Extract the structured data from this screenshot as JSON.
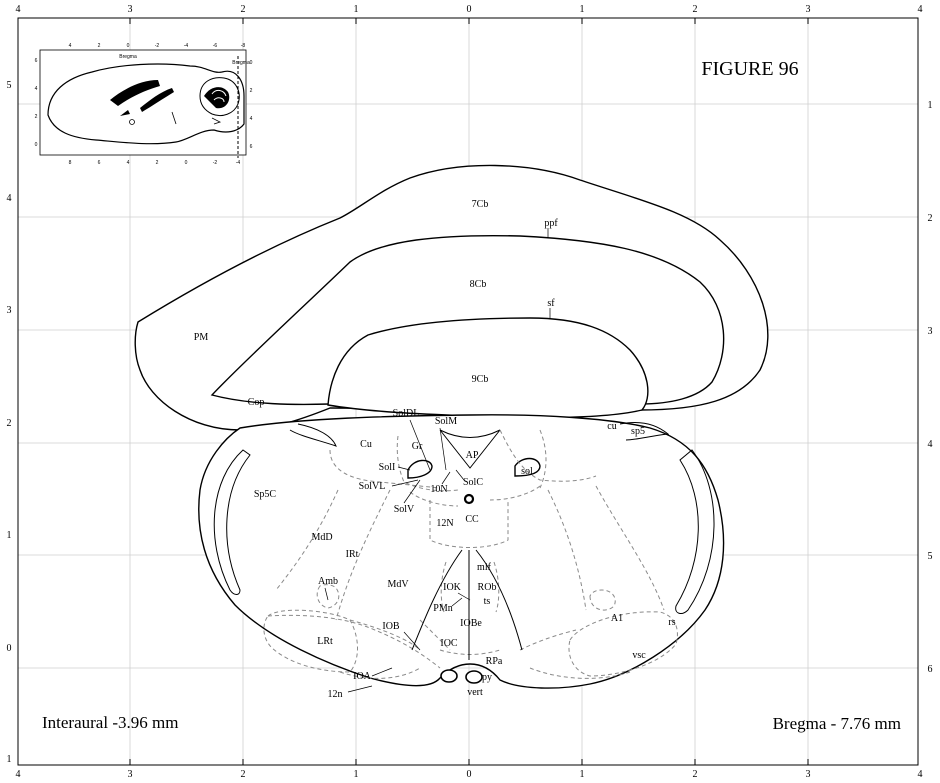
{
  "figure_title": "FIGURE 96",
  "interaural": "Interaural -3.96 mm",
  "bregma": "Bregma - 7.76 mm",
  "axes": {
    "top": [
      "4",
      "3",
      "2",
      "1",
      "0",
      "1",
      "2",
      "3",
      "4"
    ],
    "bottom": [
      "4",
      "3",
      "2",
      "1",
      "0",
      "1",
      "2",
      "3",
      "4"
    ],
    "left": [
      "5",
      "4",
      "3",
      "2",
      "1",
      "0",
      "1"
    ],
    "right": [
      "1",
      "2",
      "3",
      "4",
      "5",
      "6"
    ]
  },
  "inset": {
    "top_ticks": [
      "4",
      "2",
      "0",
      "-2",
      "-4",
      "-6",
      "-8"
    ],
    "bottom_ticks": [
      "8",
      "6",
      "4",
      "2",
      "0",
      "-2",
      "-4"
    ],
    "left_ticks": [
      "6",
      "4",
      "2",
      "0"
    ],
    "right_ticks": [
      "0",
      "2",
      "4",
      "6"
    ],
    "bregma_label": "Bregma",
    "bregma_right_label": "Bregma"
  },
  "structure_labels": {
    "cb7": "7Cb",
    "ppf": "ppf",
    "cb8": "8Cb",
    "sf": "sf",
    "cb9": "9Cb",
    "pm": "PM",
    "cop": "Cop",
    "soldl": "SolDL",
    "solm": "SolM",
    "gr": "Gr",
    "cu_left": "Cu",
    "cu_right": "cu",
    "sp5": "sp5",
    "ap": "AP",
    "soli": "SolI",
    "sol": "sol",
    "solvl": "SolVL",
    "n10": "10N",
    "solc": "SolC",
    "sp5c": "Sp5C",
    "solv": "SolV",
    "n12": "12N",
    "cc": "CC",
    "mdd": "MdD",
    "irt": "IRt",
    "mlf": "mlf",
    "amb": "Amb",
    "mdv": "MdV",
    "iok": "IOK",
    "rob": "ROb",
    "ts": "ts",
    "pmn": "PMn",
    "a1": "A1",
    "iob": "IOB",
    "iobe": "IOBe",
    "rs": "rs",
    "lrt": "LRt",
    "ioc": "IOC",
    "vsc": "vsc",
    "rpa": "RPa",
    "ioa": "IOA",
    "py": "py",
    "vert": "vert",
    "n12n": "12n"
  }
}
